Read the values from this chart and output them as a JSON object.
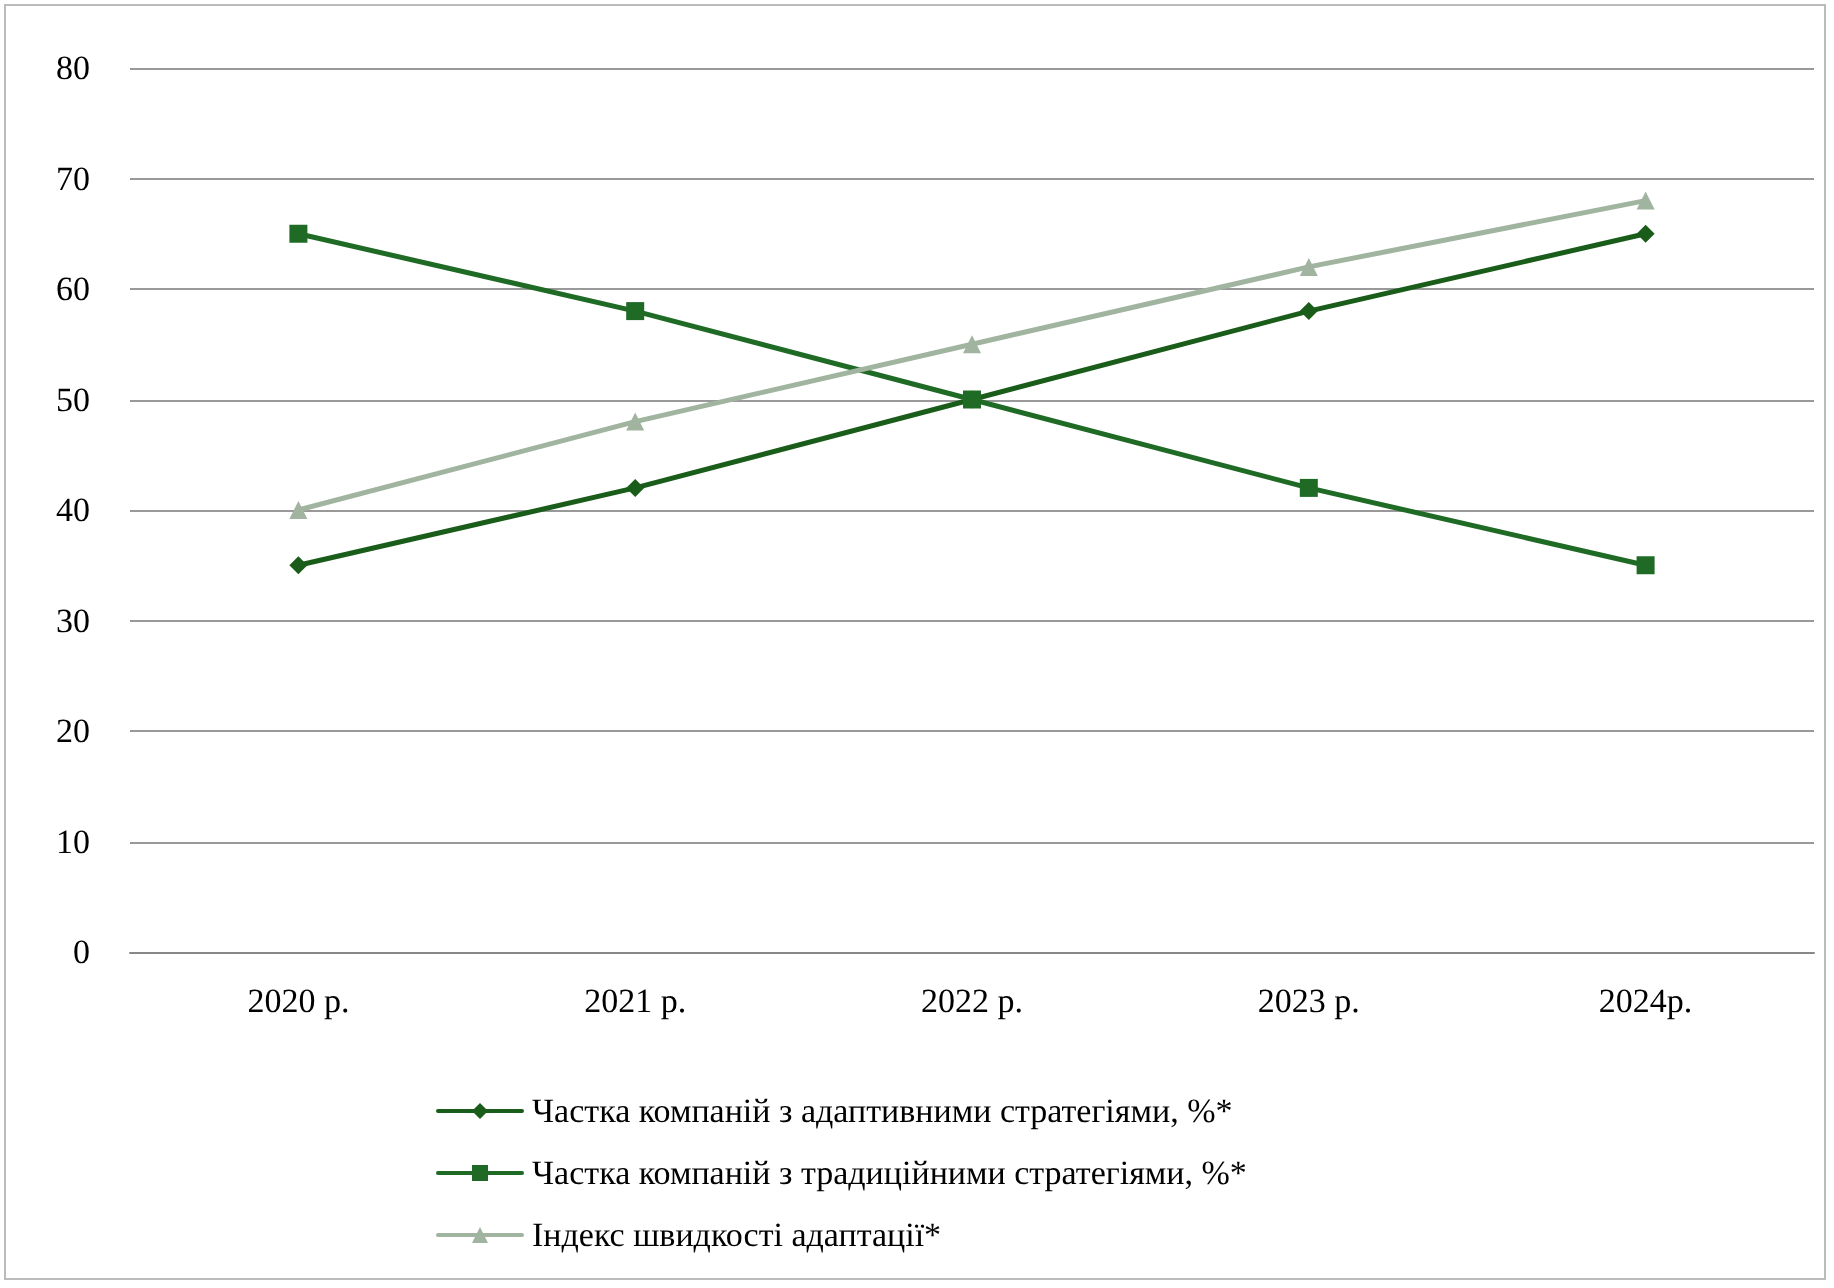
{
  "chart_data": {
    "type": "line",
    "categories": [
      "2020 р.",
      "2021 р.",
      "2022 р.",
      "2023 р.",
      "2024р."
    ],
    "series": [
      {
        "name": "Частка компаній з адаптивними стратегіями, %*",
        "color": "#1a5c1a",
        "marker": "diamond",
        "values": [
          35,
          42,
          50,
          58,
          65
        ]
      },
      {
        "name": "Частка компаній з традиційними стратегіями, %*",
        "color": "#1f6b26",
        "marker": "square",
        "values": [
          65,
          58,
          50,
          42,
          35
        ]
      },
      {
        "name": "Індекс швидкості адаптації*",
        "color": "#a0b4a0",
        "marker": "triangle",
        "values": [
          40,
          48,
          55,
          62,
          68
        ]
      }
    ],
    "ylim": [
      0,
      80
    ],
    "yticks": [
      0,
      10,
      20,
      30,
      40,
      50,
      60,
      70,
      80
    ],
    "grid": "y",
    "legend": "bottom",
    "line_style": "solid"
  }
}
